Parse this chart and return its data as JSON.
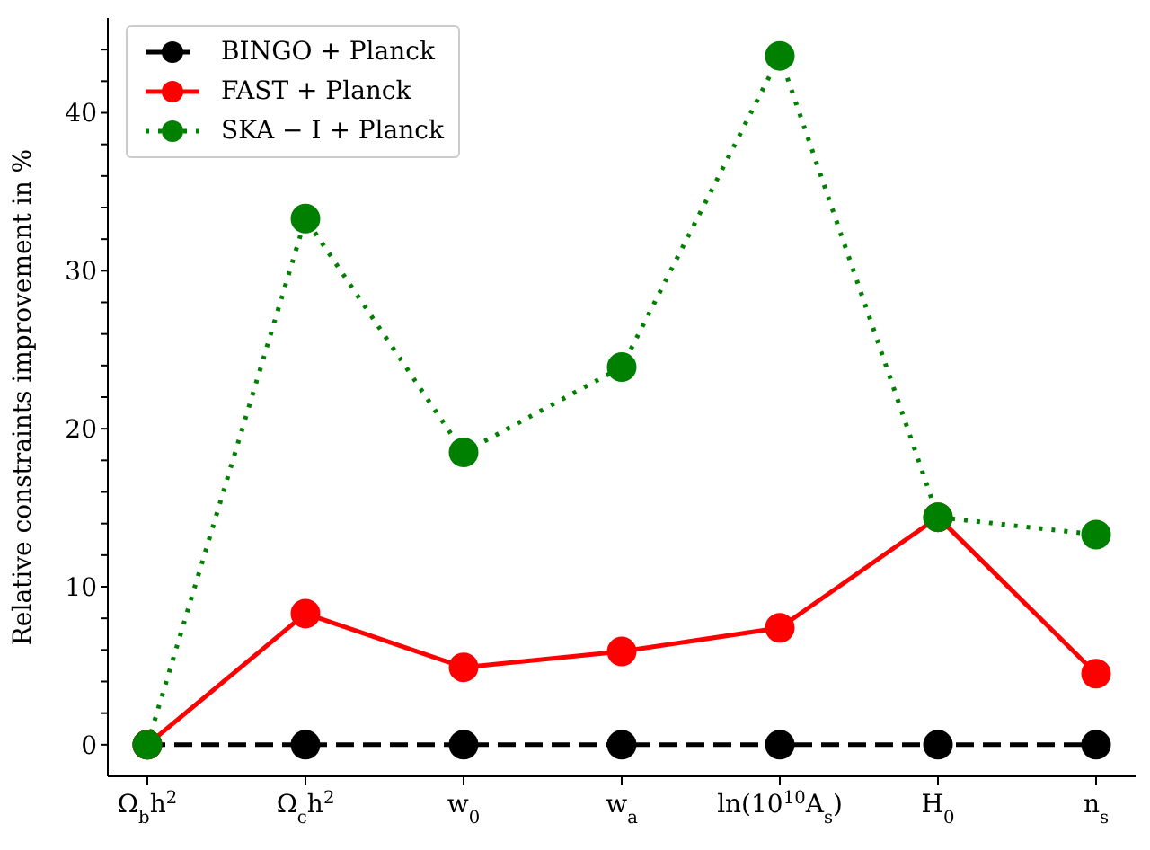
{
  "chart_data": {
    "type": "line",
    "ylabel": "Relative constraints improvement in %",
    "categories": [
      "Ω$_{b}$h$^{2}$",
      "Ω$_{c}$h$^{2}$",
      "w$_{0}$",
      "w$_{a}$",
      "ln(10$^{10}$A$_{s}$)",
      "H$_{0}$",
      "n$_{s}$"
    ],
    "series": [
      {
        "name": "BINGO + Planck",
        "color": "#000000",
        "line_style": "dashed",
        "values": [
          0,
          0,
          0,
          0,
          0,
          0,
          0
        ]
      },
      {
        "name": "FAST + Planck",
        "color": "#ff0000",
        "line_style": "solid",
        "values": [
          0,
          8.3,
          4.9,
          5.9,
          7.4,
          14.4,
          4.5
        ]
      },
      {
        "name": "SKA − I + Planck",
        "color": "#008000",
        "line_style": "dotted",
        "values": [
          0,
          33.3,
          18.5,
          23.9,
          43.6,
          14.4,
          13.3
        ]
      }
    ],
    "ylim": [
      -2,
      46
    ],
    "yticks": [
      0,
      {
        "value": 2,
        "label": null
      },
      {
        "value": 4,
        "label": null
      },
      {
        "value": 6,
        "label": null
      },
      {
        "value": 8,
        "label": null
      },
      10,
      {
        "value": 12,
        "label": null
      },
      {
        "value": 14,
        "label": null
      },
      {
        "value": 16,
        "label": null
      },
      {
        "value": 18,
        "label": null
      },
      20,
      {
        "value": 22,
        "label": null
      },
      {
        "value": 24,
        "label": null
      },
      {
        "value": 26,
        "label": null
      },
      {
        "value": 28,
        "label": null
      },
      30,
      {
        "value": 32,
        "label": null
      },
      {
        "value": 34,
        "label": null
      },
      {
        "value": 36,
        "label": null
      },
      {
        "value": 38,
        "label": null
      },
      40,
      {
        "value": 42,
        "label": null
      },
      {
        "value": 44,
        "label": null
      }
    ],
    "marker": "circle",
    "grid": false,
    "legend": "top left"
  }
}
